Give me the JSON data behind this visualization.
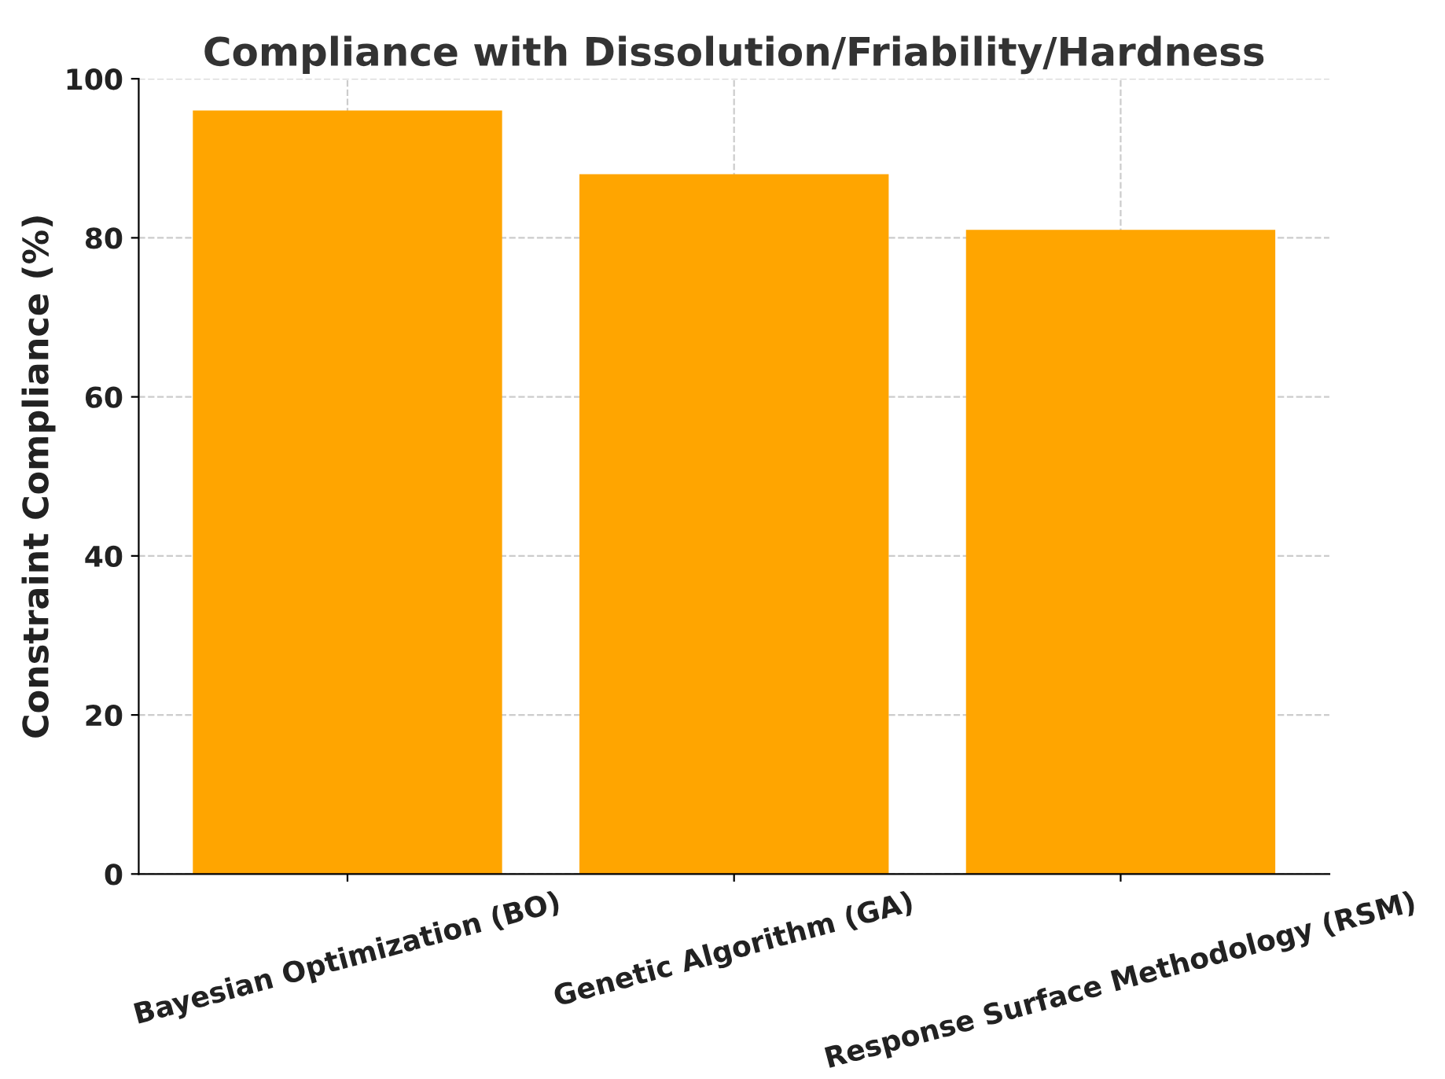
{
  "chart_data": {
    "type": "bar",
    "title": "Compliance with Dissolution/Friability/Hardness",
    "ylabel": "Constraint Compliance (%)",
    "categories": [
      "Bayesian Optimization (BO)",
      "Genetic Algorithm (GA)",
      "Response Surface Methodology (RSM)"
    ],
    "values": [
      96,
      88,
      81
    ],
    "color": "#ffa500",
    "ylim": [
      0,
      100
    ],
    "yticks": [
      0,
      20,
      40,
      60,
      80,
      100
    ],
    "grid": true
  }
}
